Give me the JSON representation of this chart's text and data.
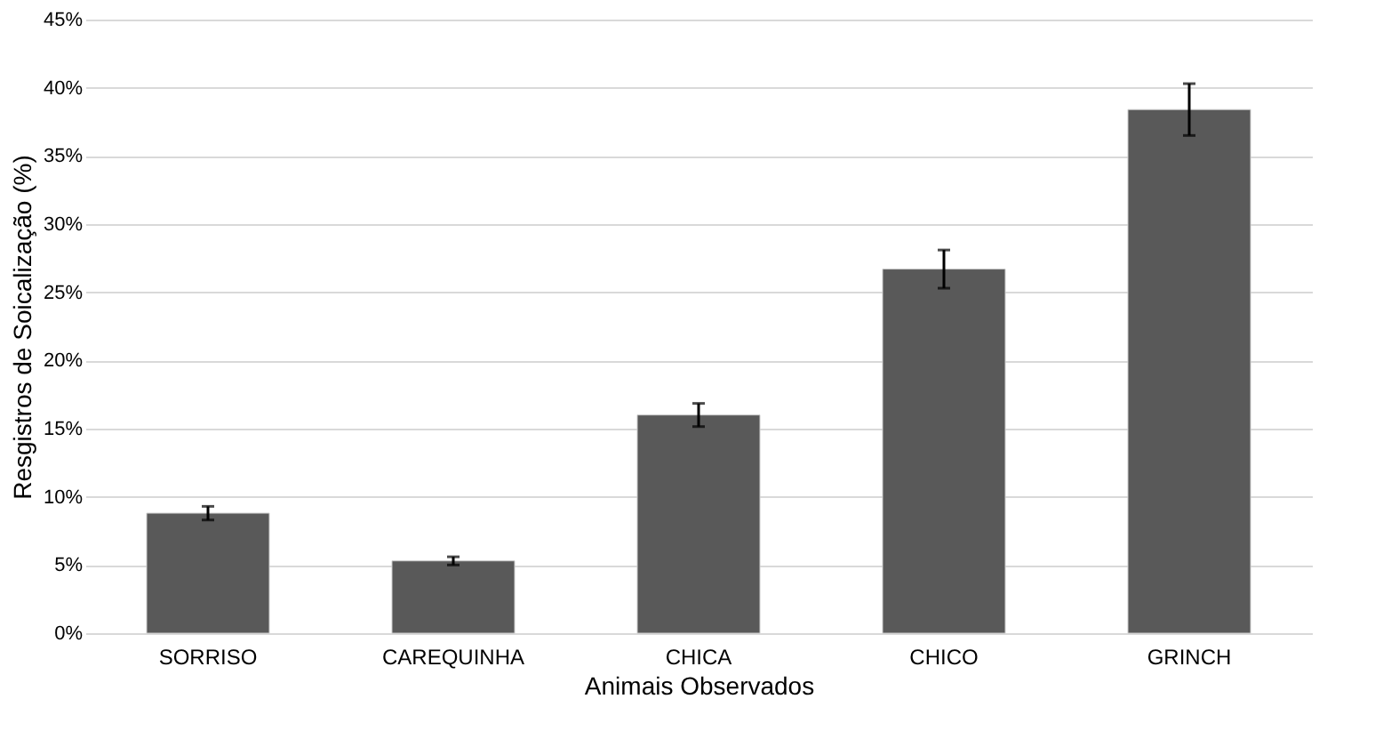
{
  "chart_data": {
    "type": "bar",
    "xlabel": "Animais Observados",
    "ylabel": "Resgistros de Soicalização (%)",
    "categories": [
      "SORRISO",
      "CAREQUINHA",
      "CHICA",
      "CHICO",
      "GRINCH"
    ],
    "values": [
      8.8,
      5.3,
      16.0,
      26.7,
      38.4
    ],
    "errors": [
      0.5,
      0.3,
      0.85,
      1.4,
      1.9
    ],
    "color": "#595959",
    "ylim": [
      0,
      45
    ],
    "yticks": [
      {
        "value": 0,
        "label": "0%"
      },
      {
        "value": 5,
        "label": "5%"
      },
      {
        "value": 10,
        "label": "10%"
      },
      {
        "value": 15,
        "label": "15%"
      },
      {
        "value": 20,
        "label": "20%"
      },
      {
        "value": 25,
        "label": "25%"
      },
      {
        "value": 30,
        "label": "30%"
      },
      {
        "value": 35,
        "label": "35%"
      },
      {
        "value": 40,
        "label": "40%"
      },
      {
        "value": 45,
        "label": "45%"
      }
    ],
    "grid": "y"
  }
}
